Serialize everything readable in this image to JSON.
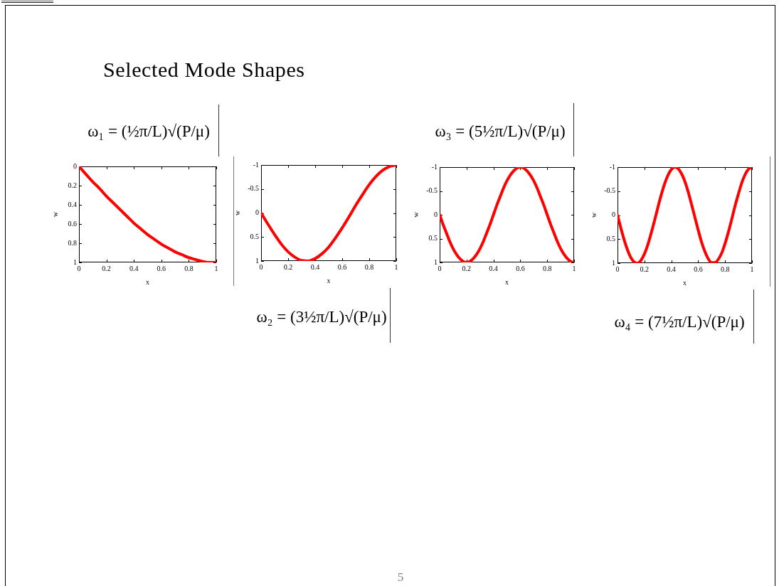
{
  "chart_data": [
    {
      "type": "line",
      "title": "Selected Mode Shapes",
      "xlabel": "x",
      "ylabel": "w",
      "xlim": [
        0,
        1
      ],
      "xticks": [
        0,
        0.2,
        0.4,
        0.6,
        0.8,
        1
      ],
      "ylim": [
        1,
        0
      ],
      "yticks": [
        0,
        0.2,
        0.4,
        0.6,
        0.8,
        1
      ],
      "color": "#ff0000",
      "x": [
        0,
        0.05,
        0.1,
        0.15,
        0.2,
        0.25,
        0.3,
        0.35,
        0.4,
        0.45,
        0.5,
        0.55,
        0.6,
        0.65,
        0.7,
        0.75,
        0.8,
        0.85,
        0.9,
        0.95,
        1
      ],
      "values": [
        0,
        0.08,
        0.16,
        0.23,
        0.31,
        0.38,
        0.45,
        0.52,
        0.59,
        0.65,
        0.71,
        0.76,
        0.81,
        0.85,
        0.89,
        0.92,
        0.95,
        0.97,
        0.99,
        1,
        1
      ],
      "annotations": [
        "ω₁ = (½π/L)√(P/μ)",
        "5"
      ]
    },
    {
      "type": "line",
      "xlabel": "x",
      "ylabel": "w",
      "xlim": [
        0,
        1
      ],
      "xticks": [
        0,
        0.2,
        0.4,
        0.6,
        0.8,
        1
      ],
      "ylim": [
        1,
        -1
      ],
      "yticks": [
        -1,
        -0.5,
        0,
        0.5,
        1
      ],
      "color": "#ff0000",
      "x": [
        0,
        0.05,
        0.1,
        0.15,
        0.2,
        0.25,
        0.3,
        0.35,
        0.4,
        0.45,
        0.5,
        0.55,
        0.6,
        0.65,
        0.7,
        0.75,
        0.8,
        0.85,
        0.9,
        0.95,
        1
      ],
      "values": [
        0,
        0.23,
        0.45,
        0.65,
        0.81,
        0.92,
        0.99,
        1,
        0.95,
        0.85,
        0.71,
        0.52,
        0.31,
        0.08,
        -0.16,
        -0.38,
        -0.59,
        -0.76,
        -0.89,
        -0.97,
        -1
      ],
      "annotations": [
        "ω₂ = (3½π/L)√(P/μ)"
      ]
    },
    {
      "type": "line",
      "xlabel": "x",
      "ylabel": "w",
      "xlim": [
        0,
        1
      ],
      "xticks": [
        0,
        0.2,
        0.4,
        0.6,
        0.8,
        1
      ],
      "ylim": [
        1,
        -1
      ],
      "yticks": [
        -1,
        -0.5,
        0,
        0.5,
        1
      ],
      "color": "#ff0000",
      "x": [
        0,
        0.025,
        0.05,
        0.075,
        0.1,
        0.125,
        0.15,
        0.175,
        0.2,
        0.225,
        0.25,
        0.275,
        0.3,
        0.325,
        0.35,
        0.375,
        0.4,
        0.425,
        0.45,
        0.475,
        0.5,
        0.525,
        0.55,
        0.575,
        0.6,
        0.625,
        0.65,
        0.675,
        0.7,
        0.725,
        0.75,
        0.775,
        0.8,
        0.825,
        0.85,
        0.875,
        0.9,
        0.925,
        0.95,
        0.975,
        1
      ],
      "values": [
        0,
        0.2,
        0.38,
        0.56,
        0.71,
        0.83,
        0.92,
        0.98,
        1,
        0.98,
        0.92,
        0.83,
        0.71,
        0.56,
        0.38,
        0.2,
        0,
        -0.2,
        -0.38,
        -0.56,
        -0.71,
        -0.83,
        -0.92,
        -0.98,
        -1,
        -0.98,
        -0.92,
        -0.83,
        -0.71,
        -0.56,
        -0.38,
        -0.2,
        0,
        0.2,
        0.38,
        0.56,
        0.71,
        0.83,
        0.92,
        0.98,
        1
      ],
      "annotations": [
        "ω₃ = (5½π/L)√(P/μ)"
      ]
    },
    {
      "type": "line",
      "xlabel": "x",
      "ylabel": "w",
      "xlim": [
        0,
        1
      ],
      "xticks": [
        0,
        0.2,
        0.4,
        0.6,
        0.8,
        1
      ],
      "ylim": [
        1,
        -1
      ],
      "yticks": [
        -1,
        -0.5,
        0,
        0.5,
        1
      ],
      "color": "#ff0000",
      "x": [
        0,
        0.025,
        0.05,
        0.075,
        0.1,
        0.125,
        0.15,
        0.175,
        0.2,
        0.225,
        0.25,
        0.275,
        0.3,
        0.325,
        0.35,
        0.375,
        0.4,
        0.425,
        0.45,
        0.475,
        0.5,
        0.525,
        0.55,
        0.575,
        0.6,
        0.625,
        0.65,
        0.675,
        0.7,
        0.725,
        0.75,
        0.775,
        0.8,
        0.825,
        0.85,
        0.875,
        0.9,
        0.925,
        0.95,
        0.975,
        1
      ],
      "values": [
        0,
        0.27,
        0.52,
        0.73,
        0.89,
        0.98,
        1,
        0.94,
        0.81,
        0.62,
        0.38,
        0.12,
        -0.16,
        -0.42,
        -0.65,
        -0.83,
        -0.95,
        -1,
        -0.97,
        -0.87,
        -0.71,
        -0.49,
        -0.23,
        0.04,
        0.31,
        0.56,
        0.76,
        0.91,
        0.99,
        0.99,
        0.92,
        0.79,
        0.59,
        0.35,
        0.08,
        -0.2,
        -0.45,
        -0.68,
        -0.85,
        -0.96,
        -1
      ],
      "annotations": [
        "ω₄ = (7½π/L)√(P/μ)"
      ]
    }
  ]
}
